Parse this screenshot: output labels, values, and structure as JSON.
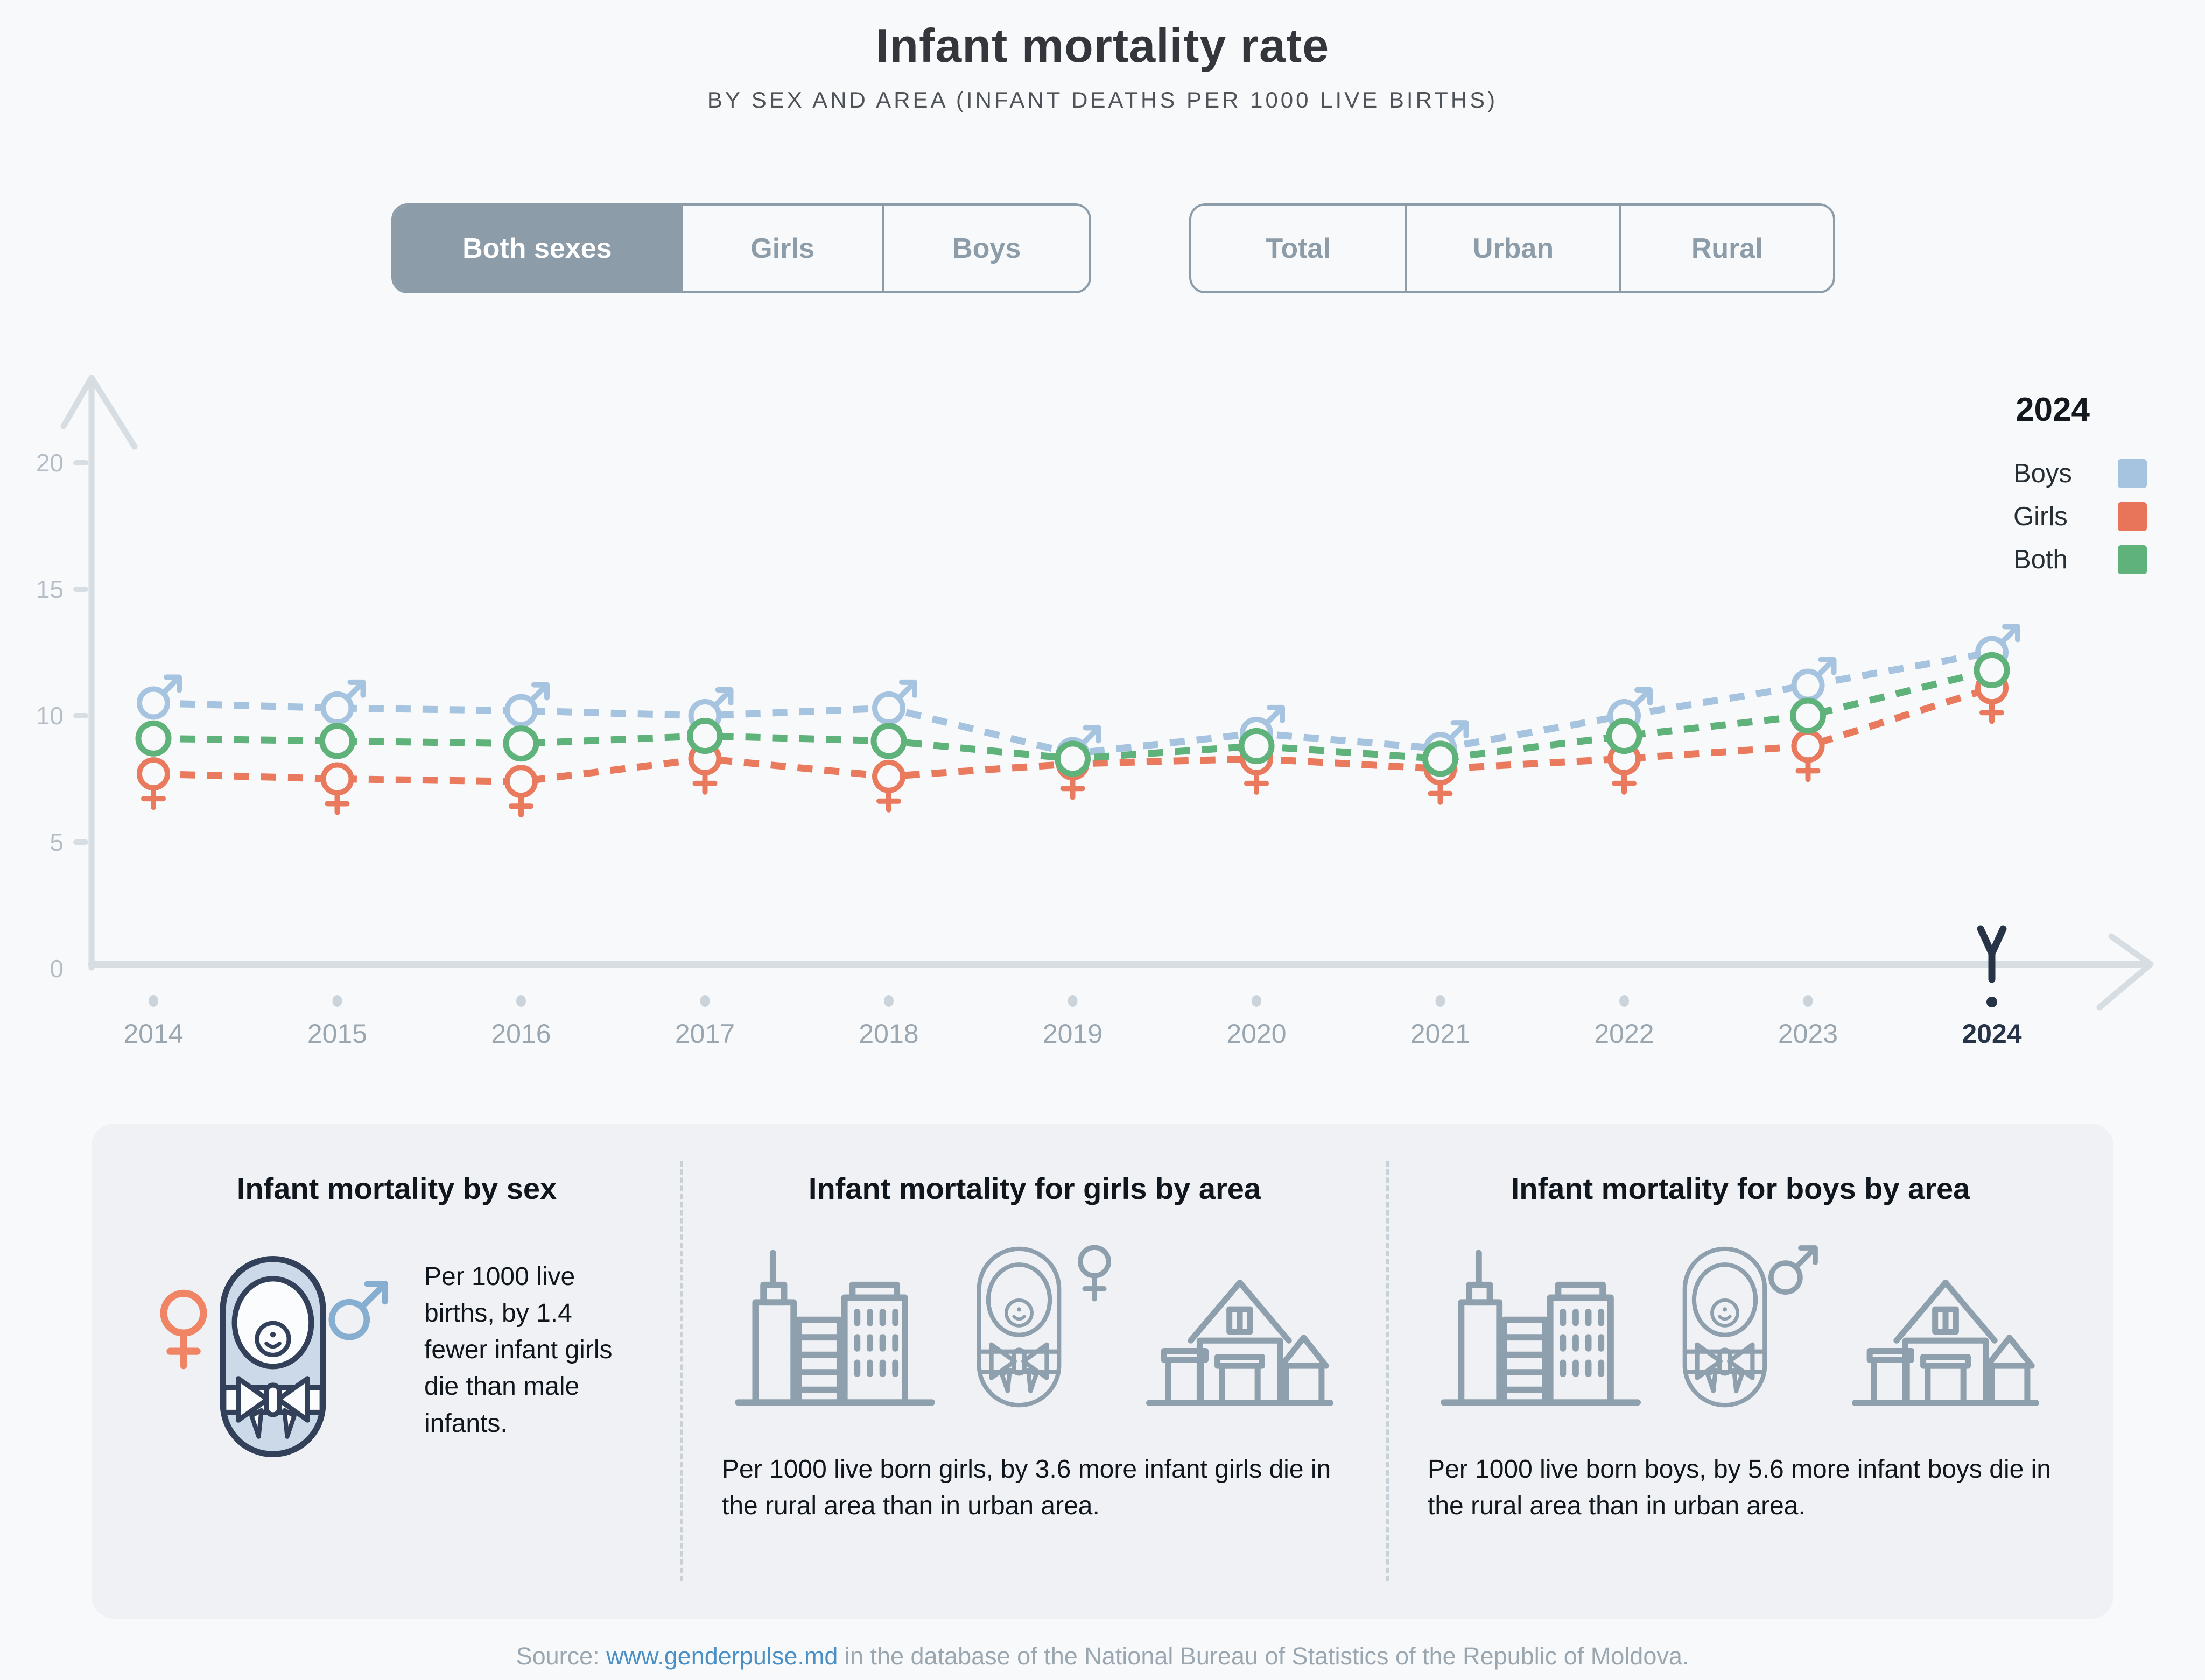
{
  "header": {
    "title": "Infant mortality rate",
    "subtitle": "BY SEX AND AREA (INFANT DEATHS PER 1000 LIVE BIRTHS)"
  },
  "controls": {
    "sex_toggle": {
      "options": [
        {
          "label": "Both sexes",
          "selected": true
        },
        {
          "label": "Girls",
          "selected": false
        },
        {
          "label": "Boys",
          "selected": false
        }
      ]
    },
    "area_toggle": {
      "options": [
        {
          "label": "Total",
          "selected": false
        },
        {
          "label": "Urban",
          "selected": false
        },
        {
          "label": "Rural",
          "selected": false
        }
      ]
    }
  },
  "legend": {
    "year": "2024",
    "items": [
      {
        "label": "Boys",
        "color": "#a6c3df"
      },
      {
        "label": "Girls",
        "color": "#e8745a"
      },
      {
        "label": "Both",
        "color": "#5fb27a"
      }
    ]
  },
  "chart_data": {
    "type": "line",
    "title": "Infant mortality rate",
    "xlabel": "",
    "ylabel": "",
    "x": [
      "2014",
      "2015",
      "2016",
      "2017",
      "2018",
      "2019",
      "2020",
      "2021",
      "2022",
      "2023",
      "2024"
    ],
    "yticks": [
      0,
      5,
      10,
      15,
      20
    ],
    "ylim": [
      0,
      21
    ],
    "grid": false,
    "legend_position": "top-right",
    "highlighted_x": "2024",
    "line_style": "dashed",
    "series": [
      {
        "name": "Boys",
        "marker": "male",
        "color": "#a6c3df",
        "values": [
          10.5,
          10.3,
          10.2,
          10.0,
          10.3,
          8.5,
          9.3,
          8.7,
          10.0,
          11.2,
          12.5
        ]
      },
      {
        "name": "Girls",
        "marker": "female",
        "color": "#e97a5e",
        "values": [
          7.7,
          7.5,
          7.4,
          8.3,
          7.6,
          8.1,
          8.3,
          7.9,
          8.3,
          8.8,
          11.1
        ]
      },
      {
        "name": "Both",
        "marker": "circle",
        "color": "#5fb27a",
        "values": [
          9.1,
          9.0,
          8.9,
          9.2,
          9.0,
          8.3,
          8.8,
          8.3,
          9.2,
          10.0,
          11.8
        ]
      }
    ],
    "axis_color": "#d6dde3",
    "tick_label_color": "#b5bec7",
    "x_label_color": "#9aa6b0",
    "highlight_color": "#273447"
  },
  "cards": [
    {
      "title": "Infant mortality by sex",
      "text": "Per 1000 live births, by 1.4 fewer infant girls die than male infants."
    },
    {
      "title": "Infant mortality for girls by area",
      "text": "Per 1000 live born girls, by 3.6 more infant girls die in the rural area than in urban area."
    },
    {
      "title": "Infant mortality for boys by area",
      "text": "Per 1000 live born boys, by 5.6 more infant boys die in the rural area than in urban area."
    }
  ],
  "source": {
    "prefix": "Source: ",
    "link": "www.genderpulse.md",
    "suffix": " in the database of the National Bureau of Statistics of the Republic of Moldova."
  }
}
